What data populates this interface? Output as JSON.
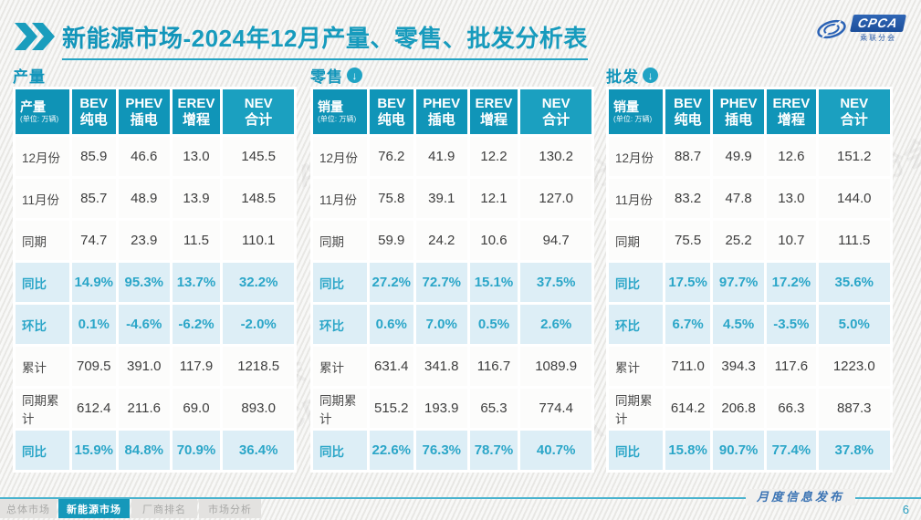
{
  "header": {
    "title_highlight": "新能源市场",
    "title_rest": "-2024年12月产量、零售、批发分析表",
    "logo_text": "CPCA",
    "logo_subtext": "乘联分会"
  },
  "watermark": "CPCA 乘联分会",
  "tables": [
    {
      "section_label": "产量",
      "corner_label": "产量",
      "corner_unit": "(单位: 万辆)",
      "columns": [
        {
          "en": "BEV",
          "zh": "纯电"
        },
        {
          "en": "PHEV",
          "zh": "插电"
        },
        {
          "en": "EREV",
          "zh": "增程"
        },
        {
          "en": "NEV",
          "zh": "合计"
        }
      ],
      "rows": [
        {
          "label": "12月份",
          "highlight": false,
          "values": [
            "85.9",
            "46.6",
            "13.0",
            "145.5"
          ]
        },
        {
          "label": "11月份",
          "highlight": false,
          "values": [
            "85.7",
            "48.9",
            "13.9",
            "148.5"
          ]
        },
        {
          "label": "同期",
          "highlight": false,
          "values": [
            "74.7",
            "23.9",
            "11.5",
            "110.1"
          ]
        },
        {
          "label": "同比",
          "highlight": true,
          "values": [
            "14.9%",
            "95.3%",
            "13.7%",
            "32.2%"
          ]
        },
        {
          "label": "环比",
          "highlight": true,
          "values": [
            "0.1%",
            "-4.6%",
            "-6.2%",
            "-2.0%"
          ]
        },
        {
          "label": "累计",
          "highlight": false,
          "values": [
            "709.5",
            "391.0",
            "117.9",
            "1218.5"
          ]
        },
        {
          "label": "同期累计",
          "highlight": false,
          "values": [
            "612.4",
            "211.6",
            "69.0",
            "893.0"
          ]
        },
        {
          "label": "同比",
          "highlight": true,
          "values": [
            "15.9%",
            "84.8%",
            "70.9%",
            "36.4%"
          ]
        }
      ]
    },
    {
      "section_label": "零售",
      "corner_label": "销量",
      "corner_unit": "(单位: 万辆)",
      "columns": [
        {
          "en": "BEV",
          "zh": "纯电"
        },
        {
          "en": "PHEV",
          "zh": "插电"
        },
        {
          "en": "EREV",
          "zh": "增程"
        },
        {
          "en": "NEV",
          "zh": "合计"
        }
      ],
      "rows": [
        {
          "label": "12月份",
          "highlight": false,
          "values": [
            "76.2",
            "41.9",
            "12.2",
            "130.2"
          ]
        },
        {
          "label": "11月份",
          "highlight": false,
          "values": [
            "75.8",
            "39.1",
            "12.1",
            "127.0"
          ]
        },
        {
          "label": "同期",
          "highlight": false,
          "values": [
            "59.9",
            "24.2",
            "10.6",
            "94.7"
          ]
        },
        {
          "label": "同比",
          "highlight": true,
          "values": [
            "27.2%",
            "72.7%",
            "15.1%",
            "37.5%"
          ]
        },
        {
          "label": "环比",
          "highlight": true,
          "values": [
            "0.6%",
            "7.0%",
            "0.5%",
            "2.6%"
          ]
        },
        {
          "label": "累计",
          "highlight": false,
          "values": [
            "631.4",
            "341.8",
            "116.7",
            "1089.9"
          ]
        },
        {
          "label": "同期累计",
          "highlight": false,
          "values": [
            "515.2",
            "193.9",
            "65.3",
            "774.4"
          ]
        },
        {
          "label": "同比",
          "highlight": true,
          "values": [
            "22.6%",
            "76.3%",
            "78.7%",
            "40.7%"
          ]
        }
      ]
    },
    {
      "section_label": "批发",
      "corner_label": "销量",
      "corner_unit": "(单位: 万辆)",
      "columns": [
        {
          "en": "BEV",
          "zh": "纯电"
        },
        {
          "en": "PHEV",
          "zh": "插电"
        },
        {
          "en": "EREV",
          "zh": "增程"
        },
        {
          "en": "NEV",
          "zh": "合计"
        }
      ],
      "rows": [
        {
          "label": "12月份",
          "highlight": false,
          "values": [
            "88.7",
            "49.9",
            "12.6",
            "151.2"
          ]
        },
        {
          "label": "11月份",
          "highlight": false,
          "values": [
            "83.2",
            "47.8",
            "13.0",
            "144.0"
          ]
        },
        {
          "label": "同期",
          "highlight": false,
          "values": [
            "75.5",
            "25.2",
            "10.7",
            "111.5"
          ]
        },
        {
          "label": "同比",
          "highlight": true,
          "values": [
            "17.5%",
            "97.7%",
            "17.2%",
            "35.6%"
          ]
        },
        {
          "label": "环比",
          "highlight": true,
          "values": [
            "6.7%",
            "4.5%",
            "-3.5%",
            "5.0%"
          ]
        },
        {
          "label": "累计",
          "highlight": false,
          "values": [
            "711.0",
            "394.3",
            "117.6",
            "1223.0"
          ]
        },
        {
          "label": "同期累计",
          "highlight": false,
          "values": [
            "614.2",
            "206.8",
            "66.3",
            "887.3"
          ]
        },
        {
          "label": "同比",
          "highlight": true,
          "values": [
            "15.8%",
            "90.7%",
            "77.4%",
            "37.8%"
          ]
        }
      ]
    }
  ],
  "footer": {
    "tabs": [
      {
        "label": "总体市场",
        "active": false
      },
      {
        "label": "新能源市场",
        "active": true
      },
      {
        "label": "厂商排名",
        "active": false
      },
      {
        "label": "市场分析",
        "active": false
      }
    ],
    "publish_label": "月度信息发布",
    "page_number": "6"
  },
  "colors": {
    "teal_header": "#1095b8",
    "teal_text": "#1295ba",
    "highlight_row_bg": "#ddeef6",
    "highlight_row_text": "#2ba6c8",
    "logo_blue": "#1d4f9b"
  }
}
